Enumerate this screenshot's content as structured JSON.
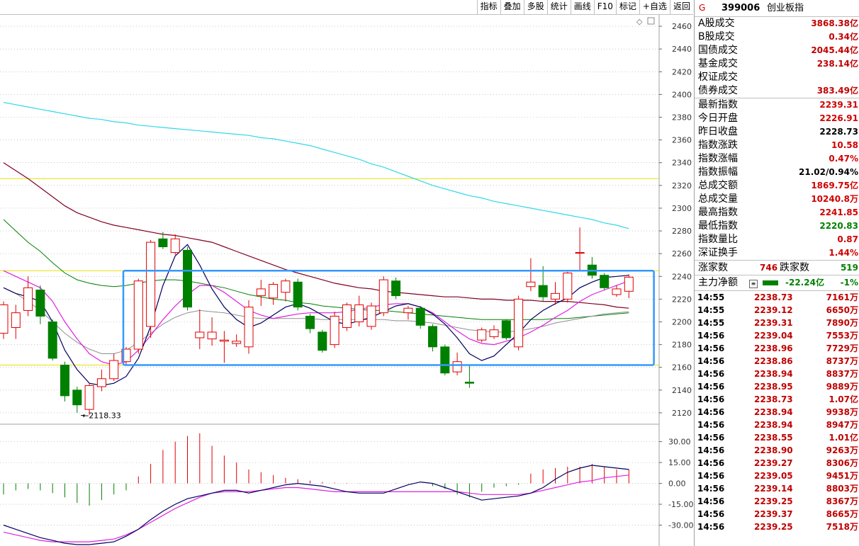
{
  "toolbar": {
    "buttons": [
      "指标",
      "叠加",
      "多股",
      "统计",
      "画线",
      "F10",
      "标记",
      "+自选",
      "返回"
    ]
  },
  "header": {
    "flag": "G",
    "code": "399006",
    "name": "创业板指"
  },
  "volume_stats": [
    {
      "label": "A股成交",
      "value": "3868.38亿"
    },
    {
      "label": "B股成交",
      "value": "0.34亿"
    },
    {
      "label": "国债成交",
      "value": "2045.44亿"
    },
    {
      "label": "基金成交",
      "value": "238.14亿"
    },
    {
      "label": "权证成交",
      "value": ""
    },
    {
      "label": "债券成交",
      "value": "383.49亿"
    }
  ],
  "index_stats": [
    {
      "label": "最新指数",
      "value": "2239.31",
      "color": "red"
    },
    {
      "label": "今日开盘",
      "value": "2226.91",
      "color": "red"
    },
    {
      "label": "昨日收盘",
      "value": "2228.73",
      "color": "blk"
    },
    {
      "label": "指数涨跌",
      "value": "10.58",
      "color": "red"
    },
    {
      "label": "指数涨幅",
      "value": "0.47%",
      "color": "red"
    },
    {
      "label": "指数振幅",
      "value": "21.02/0.94%",
      "color": "blk"
    },
    {
      "label": "总成交额",
      "value": "1869.75亿",
      "color": "red"
    },
    {
      "label": "总成交量",
      "value": "10240.8万",
      "color": "red"
    },
    {
      "label": "最高指数",
      "value": "2241.85",
      "color": "red"
    },
    {
      "label": "最低指数",
      "value": "2220.83",
      "color": "grn"
    },
    {
      "label": "指数量比",
      "value": "0.87",
      "color": "red"
    },
    {
      "label": "深证换手",
      "value": "1.44%",
      "color": "red"
    }
  ],
  "updown": {
    "up_label": "涨家数",
    "up": "746",
    "down_label": "跌家数",
    "down": "519"
  },
  "netflow": {
    "label": "主力净额",
    "value": "-22.24亿",
    "pct": "-1%"
  },
  "ticks": [
    {
      "time": "14:55",
      "price": "2238.73",
      "vol": "7161万"
    },
    {
      "time": "14:55",
      "price": "2239.12",
      "vol": "6650万"
    },
    {
      "time": "14:55",
      "price": "2239.31",
      "vol": "7890万"
    },
    {
      "time": "14:56",
      "price": "2239.04",
      "vol": "7553万"
    },
    {
      "time": "14:56",
      "price": "2238.96",
      "vol": "7729万"
    },
    {
      "time": "14:56",
      "price": "2238.86",
      "vol": "8737万"
    },
    {
      "time": "14:56",
      "price": "2238.94",
      "vol": "8837万"
    },
    {
      "time": "14:56",
      "price": "2238.95",
      "vol": "9889万"
    },
    {
      "time": "14:56",
      "price": "2238.73",
      "vol": "1.07亿"
    },
    {
      "time": "14:56",
      "price": "2238.94",
      "vol": "9938万"
    },
    {
      "time": "14:56",
      "price": "2238.94",
      "vol": "8947万"
    },
    {
      "time": "14:56",
      "price": "2238.55",
      "vol": "1.01亿"
    },
    {
      "time": "14:56",
      "price": "2238.90",
      "vol": "9263万"
    },
    {
      "time": "14:56",
      "price": "2239.27",
      "vol": "8306万"
    },
    {
      "time": "14:56",
      "price": "2239.05",
      "vol": "9451万"
    },
    {
      "time": "14:56",
      "price": "2239.14",
      "vol": "8803万"
    },
    {
      "time": "14:56",
      "price": "2239.25",
      "vol": "8367万"
    },
    {
      "time": "14:56",
      "price": "2239.37",
      "vol": "8665万"
    },
    {
      "time": "14:56",
      "price": "2239.25",
      "vol": "7518万"
    }
  ],
  "chart_data": [
    {
      "type": "candlestick",
      "y_ticks": [
        "2460",
        "2440",
        "2420",
        "2400",
        "2380",
        "2360",
        "2340",
        "2320",
        "2300",
        "2280",
        "2260",
        "2240",
        "2220",
        "2200",
        "2180",
        "2160",
        "2140",
        "2120"
      ],
      "ylim": [
        2110,
        2470
      ],
      "low_annotation": "2118.33",
      "low_annotation_value": 2118.33,
      "candles": [
        {
          "o": 2190,
          "c": 2215,
          "h": 2218,
          "l": 2185
        },
        {
          "o": 2195,
          "c": 2208,
          "h": 2215,
          "l": 2185
        },
        {
          "o": 2210,
          "c": 2230,
          "h": 2240,
          "l": 2205
        },
        {
          "o": 2228,
          "c": 2205,
          "h": 2232,
          "l": 2198
        },
        {
          "o": 2200,
          "c": 2168,
          "h": 2202,
          "l": 2166
        },
        {
          "o": 2162,
          "c": 2135,
          "h": 2165,
          "l": 2130
        },
        {
          "o": 2140,
          "c": 2127,
          "h": 2143,
          "l": 2120
        },
        {
          "o": 2123,
          "c": 2144,
          "h": 2146,
          "l": 2118.33
        },
        {
          "o": 2143,
          "c": 2150,
          "h": 2158,
          "l": 2139
        },
        {
          "o": 2150,
          "c": 2166,
          "h": 2172,
          "l": 2148
        },
        {
          "o": 2165,
          "c": 2176,
          "h": 2178,
          "l": 2162
        },
        {
          "o": 2176,
          "c": 2236,
          "h": 2238,
          "l": 2172
        },
        {
          "o": 2196,
          "c": 2270,
          "h": 2272,
          "l": 2186
        },
        {
          "o": 2273,
          "c": 2266,
          "h": 2279,
          "l": 2264
        },
        {
          "o": 2261,
          "c": 2273,
          "h": 2277,
          "l": 2259
        },
        {
          "o": 2263,
          "c": 2213,
          "h": 2266,
          "l": 2210
        },
        {
          "o": 2186,
          "c": 2191,
          "h": 2211,
          "l": 2176
        },
        {
          "o": 2185,
          "c": 2191,
          "h": 2204,
          "l": 2179
        },
        {
          "o": 2183,
          "c": 2184,
          "h": 2192,
          "l": 2164
        },
        {
          "o": 2181,
          "c": 2183,
          "h": 2189,
          "l": 2178
        },
        {
          "o": 2178,
          "c": 2213,
          "h": 2219,
          "l": 2172
        },
        {
          "o": 2223,
          "c": 2229,
          "h": 2237,
          "l": 2214
        },
        {
          "o": 2221,
          "c": 2233,
          "h": 2235,
          "l": 2215
        },
        {
          "o": 2226,
          "c": 2236,
          "h": 2238,
          "l": 2218
        },
        {
          "o": 2235,
          "c": 2213,
          "h": 2238,
          "l": 2210
        },
        {
          "o": 2205,
          "c": 2194,
          "h": 2207,
          "l": 2190
        },
        {
          "o": 2191,
          "c": 2175,
          "h": 2193,
          "l": 2173
        },
        {
          "o": 2180,
          "c": 2205,
          "h": 2209,
          "l": 2177
        },
        {
          "o": 2195,
          "c": 2215,
          "h": 2217,
          "l": 2192
        },
        {
          "o": 2200,
          "c": 2215,
          "h": 2223,
          "l": 2196
        },
        {
          "o": 2196,
          "c": 2214,
          "h": 2217,
          "l": 2193
        },
        {
          "o": 2208,
          "c": 2237,
          "h": 2240,
          "l": 2205
        },
        {
          "o": 2236,
          "c": 2223,
          "h": 2239,
          "l": 2220
        },
        {
          "o": 2208,
          "c": 2212,
          "h": 2214,
          "l": 2202
        },
        {
          "o": 2212,
          "c": 2197,
          "h": 2214,
          "l": 2194
        },
        {
          "o": 2196,
          "c": 2178,
          "h": 2198,
          "l": 2174
        },
        {
          "o": 2178,
          "c": 2155,
          "h": 2180,
          "l": 2153
        },
        {
          "o": 2156,
          "c": 2165,
          "h": 2173,
          "l": 2153
        },
        {
          "o": 2147,
          "c": 2146,
          "h": 2162,
          "l": 2142
        },
        {
          "o": 2184,
          "c": 2193,
          "h": 2195,
          "l": 2182
        },
        {
          "o": 2187,
          "c": 2193,
          "h": 2197,
          "l": 2185
        },
        {
          "o": 2201,
          "c": 2186,
          "h": 2202,
          "l": 2184
        },
        {
          "o": 2178,
          "c": 2220,
          "h": 2223,
          "l": 2175
        },
        {
          "o": 2231,
          "c": 2235,
          "h": 2256,
          "l": 2227
        },
        {
          "o": 2232,
          "c": 2222,
          "h": 2249,
          "l": 2218
        },
        {
          "o": 2220,
          "c": 2225,
          "h": 2235,
          "l": 2215
        },
        {
          "o": 2220,
          "c": 2243,
          "h": 2244,
          "l": 2217
        },
        {
          "o": 2261,
          "c": 2261,
          "h": 2283,
          "l": 2245
        },
        {
          "o": 2250,
          "c": 2241,
          "h": 2257,
          "l": 2238
        },
        {
          "o": 2241,
          "c": 2230,
          "h": 2243,
          "l": 2228
        },
        {
          "o": 2224,
          "c": 2229,
          "h": 2232,
          "l": 2222
        },
        {
          "o": 2226.91,
          "c": 2239.31,
          "h": 2241.85,
          "l": 2220.83
        }
      ],
      "ma_fast_black": [
        2230,
        2225,
        2222,
        2218,
        2200,
        2175,
        2158,
        2146,
        2144,
        2146,
        2152,
        2168,
        2196,
        2232,
        2258,
        2268,
        2250,
        2229,
        2213,
        2202,
        2195,
        2199,
        2206,
        2213,
        2216,
        2212,
        2206,
        2200,
        2198,
        2201,
        2204,
        2209,
        2214,
        2216,
        2213,
        2207,
        2198,
        2186,
        2172,
        2166,
        2170,
        2180,
        2190,
        2202,
        2210,
        2216,
        2221,
        2230,
        2235,
        2239,
        2240,
        2241
      ],
      "ma_magenta": [
        2245,
        2240,
        2235,
        2230,
        2218,
        2200,
        2185,
        2172,
        2165,
        2162,
        2165,
        2175,
        2188,
        2202,
        2214,
        2224,
        2232,
        2232,
        2226,
        2218,
        2210,
        2206,
        2203,
        2205,
        2207,
        2208,
        2208,
        2208,
        2209,
        2211,
        2213,
        2215,
        2216,
        2216,
        2213,
        2208,
        2200,
        2192,
        2185,
        2181,
        2180,
        2183,
        2186,
        2191,
        2197,
        2204,
        2210,
        2218,
        2224,
        2228,
        2232,
        2236
      ],
      "ma_gray": [
        2230,
        2225,
        2218,
        2210,
        2200,
        2190,
        2182,
        2176,
        2172,
        2172,
        2175,
        2182,
        2190,
        2198,
        2204,
        2208,
        2210,
        2209,
        2208,
        2206,
        2204,
        2203,
        2203,
        2203,
        2203,
        2203,
        2202,
        2202,
        2202,
        2202,
        2202,
        2202,
        2201,
        2201,
        2200,
        2199,
        2197,
        2195,
        2193,
        2192,
        2191,
        2191,
        2192,
        2194,
        2196,
        2199,
        2201,
        2203,
        2205,
        2207,
        2208,
        2209
      ],
      "ma_green": [
        2290,
        2280,
        2270,
        2262,
        2252,
        2243,
        2237,
        2234,
        2232,
        2231,
        2232,
        2234,
        2236,
        2237,
        2237,
        2236,
        2234,
        2232,
        2230,
        2227,
        2224,
        2222,
        2220,
        2219,
        2217,
        2216,
        2214,
        2213,
        2212,
        2211,
        2210,
        2210,
        2209,
        2208,
        2207,
        2206,
        2205,
        2204,
        2203,
        2202,
        2202,
        2202,
        2202,
        2202,
        2202,
        2203,
        2203,
        2204,
        2205,
        2206,
        2207,
        2208
      ],
      "ma_darkred": [
        2340,
        2333,
        2326,
        2318,
        2310,
        2302,
        2296,
        2292,
        2288,
        2285,
        2283,
        2281,
        2279,
        2277,
        2276,
        2274,
        2272,
        2270,
        2266,
        2262,
        2258,
        2254,
        2250,
        2246,
        2243,
        2240,
        2237,
        2234,
        2232,
        2230,
        2229,
        2227,
        2226,
        2225,
        2224,
        2223,
        2222,
        2222,
        2221,
        2220,
        2220,
        2219,
        2219,
        2219,
        2218,
        2218,
        2218,
        2217,
        2216,
        2215,
        2213,
        2212
      ],
      "ma_cyan": [
        2393,
        2391,
        2389,
        2387,
        2385,
        2383,
        2381,
        2379,
        2378,
        2376,
        2375,
        2373,
        2372,
        2371,
        2370,
        2369,
        2368,
        2367,
        2366,
        2365,
        2364,
        2362,
        2361,
        2359,
        2357,
        2355,
        2352,
        2349,
        2346,
        2343,
        2339,
        2336,
        2332,
        2328,
        2324,
        2320,
        2317,
        2314,
        2311,
        2309,
        2306,
        2304,
        2302,
        2300,
        2298,
        2296,
        2294,
        2292,
        2290,
        2287,
        2285,
        2282
      ],
      "h_lines": [
        2326,
        2245,
        2162
      ],
      "range_box": {
        "from": 10,
        "to": 52,
        "top": 2245,
        "bottom": 2162
      }
    },
    {
      "type": "macd",
      "y_ticks": [
        "30.00",
        "15.00",
        "0.00",
        "-15.00",
        "-30.00"
      ],
      "ylim": [
        -45,
        40
      ],
      "hist": [
        -8,
        -5,
        -4,
        -5,
        -7,
        -10,
        -14,
        -16,
        -12,
        -8,
        -5,
        5,
        14,
        24,
        30,
        34,
        36,
        27,
        20,
        15,
        10,
        8,
        6,
        4,
        3,
        2,
        1,
        0.5,
        0.3,
        0.2,
        0.1,
        0.1,
        0.3,
        0.2,
        0.1,
        -2,
        -4,
        -8,
        -10,
        -6,
        -3,
        -2,
        -1,
        7,
        10,
        11,
        12,
        12,
        14,
        12,
        10,
        10
      ],
      "dif": [
        -30,
        -33,
        -36,
        -39,
        -41,
        -43,
        -44,
        -44,
        -43,
        -42,
        -38,
        -33,
        -26,
        -20,
        -15,
        -11,
        -9,
        -7,
        -5,
        -5,
        -7,
        -5,
        -3,
        -1,
        0,
        -1,
        -2,
        -4,
        -6,
        -7,
        -7,
        -7,
        -4,
        -1,
        1,
        0,
        -3,
        -6,
        -9,
        -12,
        -11,
        -10,
        -9,
        -7,
        -3,
        3,
        8,
        11,
        13,
        12,
        11,
        10
      ],
      "dea": [
        -35,
        -37,
        -39,
        -41,
        -42,
        -42,
        -42,
        -42,
        -41,
        -40,
        -37,
        -33,
        -28,
        -23,
        -18,
        -14,
        -10,
        -7,
        -6,
        -6,
        -6,
        -5,
        -4,
        -3,
        -3,
        -4,
        -5,
        -6,
        -6,
        -6,
        -6,
        -6,
        -6,
        -6,
        -6,
        -6,
        -6,
        -6,
        -7,
        -8,
        -8,
        -8,
        -8,
        -7,
        -5,
        -3,
        -1,
        1,
        2,
        4,
        5,
        6
      ]
    }
  ]
}
